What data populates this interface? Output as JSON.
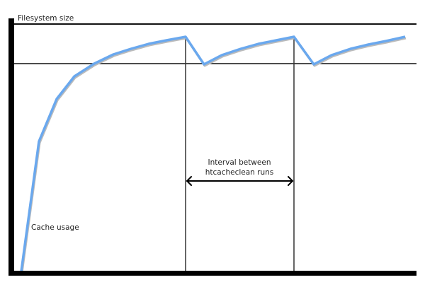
{
  "diagram": {
    "y_axis_label": "Filesystem size",
    "curve_label": "Cache usage",
    "interval_label_line1": "Interval between",
    "interval_label_line2": "htcacheclean runs",
    "colors": {
      "curve": "#6aa8ee",
      "curve_shadow": "#bbbbbb",
      "axes": "#000000",
      "lines": "#222222"
    }
  }
}
